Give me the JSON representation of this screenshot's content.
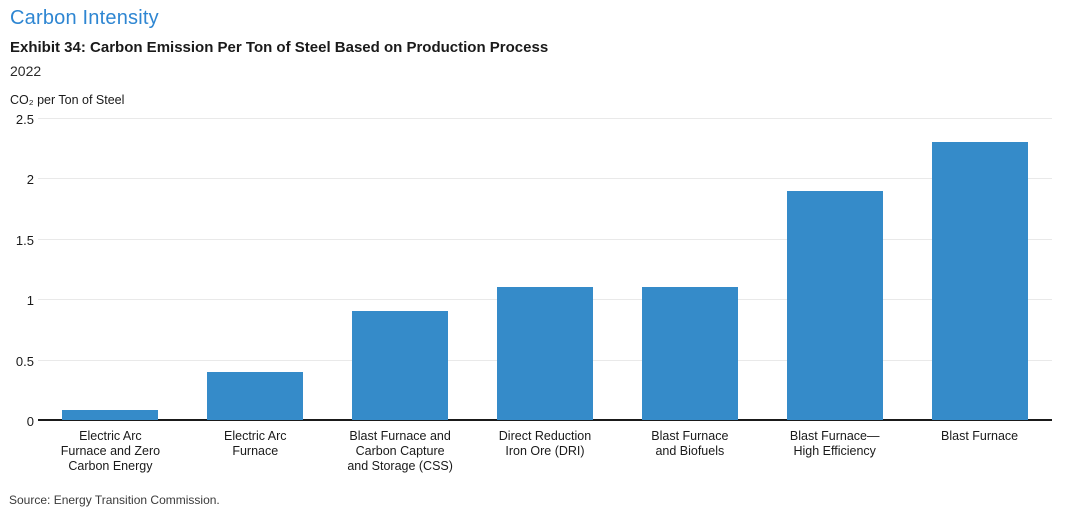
{
  "header": {
    "section_title": "Carbon Intensity",
    "exhibit_title": "Exhibit 34: Carbon Emission Per Ton of Steel Based on Production Process",
    "year": "2022"
  },
  "chart_data": {
    "type": "bar",
    "title": "Exhibit 34: Carbon Emission Per Ton of Steel Based on Production Process",
    "subtitle": "2022",
    "ylabel": "CO₂ per Ton of Steel",
    "xlabel": "",
    "categories": [
      "Electric Arc Furnace and Zero Carbon Energy",
      "Electric Arc Furnace",
      "Blast Furnace and Carbon Capture and Storage (CSS)",
      "Direct Reduction Iron Ore (DRI)",
      "Blast Furnace and Biofuels",
      "Blast Furnace—High Efficiency",
      "Blast Furnace"
    ],
    "category_label_lines": [
      [
        "Electric Arc",
        "Furnace and Zero",
        "Carbon Energy"
      ],
      [
        "Electric Arc",
        "Furnace"
      ],
      [
        "Blast Furnace and",
        "Carbon Capture",
        "and Storage (CSS)"
      ],
      [
        "Direct Reduction",
        "Iron Ore (DRI)"
      ],
      [
        "Blast Furnace",
        "and Biofuels"
      ],
      [
        "Blast Furnace—",
        "High Efficiency"
      ],
      [
        "Blast Furnace"
      ]
    ],
    "values": [
      0.08,
      0.4,
      0.9,
      1.1,
      1.1,
      1.9,
      2.3
    ],
    "ylim": [
      0,
      2.5
    ],
    "ytick_values": [
      0,
      0.5,
      1,
      1.5,
      2,
      2.5
    ],
    "ytick_labels": [
      "0",
      "0.5",
      "1",
      "1.5",
      "2",
      "2.5"
    ],
    "grid": "horizontal",
    "legend": "none"
  },
  "footer": {
    "source": "Source: Energy Transition Commission."
  },
  "colors": {
    "section_title_blue": "#2e86d2",
    "bar_blue": "#358bc9",
    "gridline_gray": "#e9e9e9",
    "axis_black": "#1a1a1a"
  }
}
